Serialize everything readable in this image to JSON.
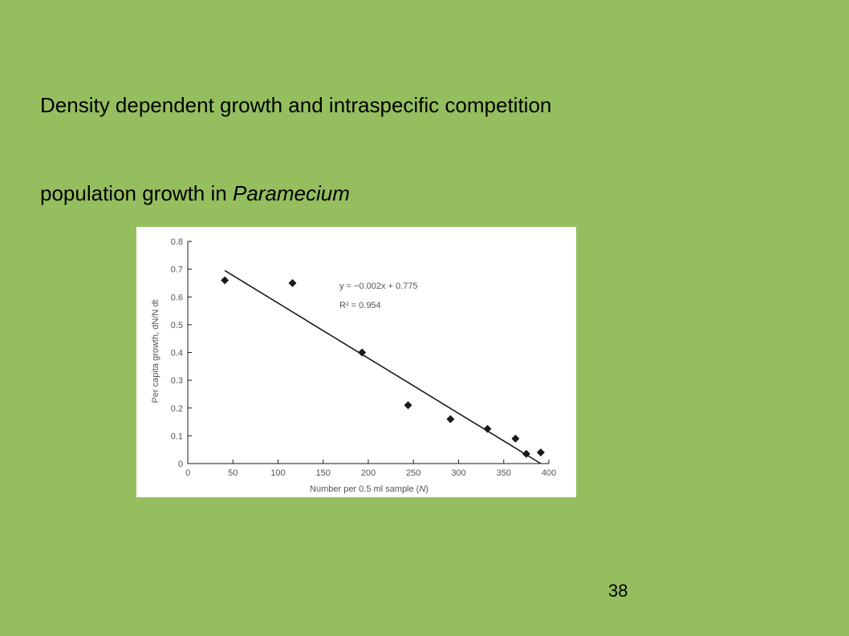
{
  "slide": {
    "title": "Density dependent growth and intraspecific competition",
    "subtitle_prefix": "population growth in ",
    "subtitle_italic": "Paramecium",
    "page_number": "38"
  },
  "colors": {
    "background": "#95bf5f",
    "panel": "#ffffff",
    "ink": "#1a1a1a",
    "axis_text": "#555555"
  },
  "chart_data": {
    "type": "scatter",
    "xlabel_prefix": "Number per 0.5 ml sample (",
    "xlabel_italic": "N",
    "xlabel_suffix": ")",
    "ylabel": "Per capita growth, dN/N dt",
    "xlim": [
      0,
      400
    ],
    "ylim": [
      0,
      0.8
    ],
    "xticks": [
      0,
      50,
      100,
      150,
      200,
      250,
      300,
      350,
      400
    ],
    "yticks": [
      0,
      0.1,
      0.2,
      0.3,
      0.4,
      0.5,
      0.6,
      0.7,
      0.8
    ],
    "ytick_labels": [
      "0",
      "0.1",
      "0.2",
      "0.3",
      "0.4",
      "0.5",
      "0.6",
      "0.7",
      "0.8"
    ],
    "grid": false,
    "series": [
      {
        "marker": "diamond",
        "points": [
          {
            "x": 41,
            "y": 0.66
          },
          {
            "x": 116,
            "y": 0.65
          },
          {
            "x": 193,
            "y": 0.4
          },
          {
            "x": 244,
            "y": 0.21
          },
          {
            "x": 291,
            "y": 0.16
          },
          {
            "x": 332,
            "y": 0.125
          },
          {
            "x": 363,
            "y": 0.09
          },
          {
            "x": 375,
            "y": 0.035
          },
          {
            "x": 391,
            "y": 0.04
          }
        ]
      }
    ],
    "trendline": {
      "x_start": 41,
      "x_end": 391,
      "y_start": 0.695,
      "y_end": 0.0,
      "equation": "y = −0.002x + 0.775",
      "r_squared": "R² = 0.954"
    }
  }
}
